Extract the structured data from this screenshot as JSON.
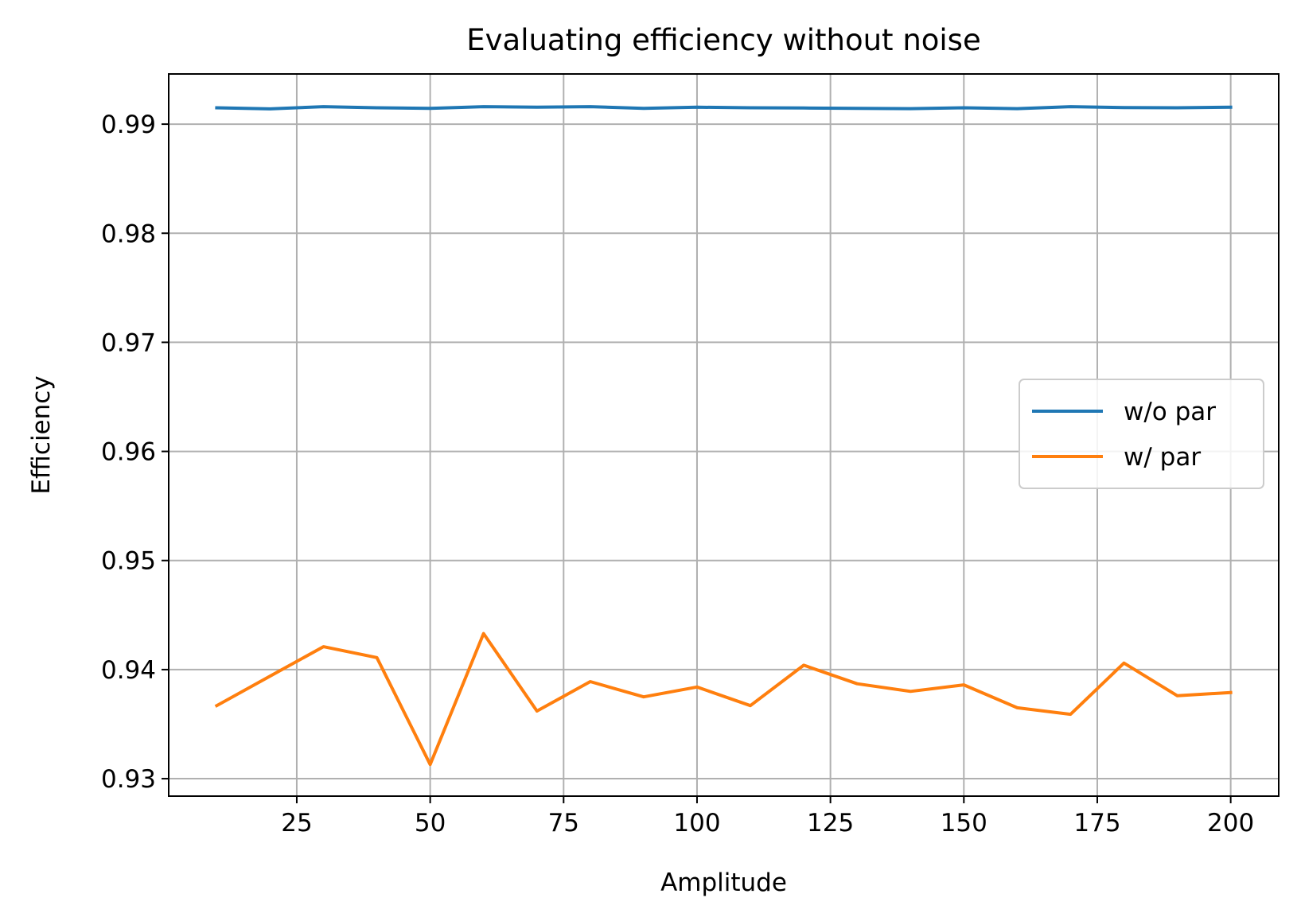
{
  "chart_data": {
    "type": "line",
    "title": "Evaluating efficiency without noise",
    "xlabel": "Amplitude",
    "ylabel": "Efficiency",
    "xlim": [
      1,
      209
    ],
    "ylim": [
      0.9284,
      0.9946
    ],
    "xticks": [
      25,
      50,
      75,
      100,
      125,
      150,
      175,
      200
    ],
    "xtick_labels": [
      "25",
      "50",
      "75",
      "100",
      "125",
      "150",
      "175",
      "200"
    ],
    "yticks": [
      0.93,
      0.94,
      0.95,
      0.96,
      0.97,
      0.98,
      0.99
    ],
    "ytick_labels": [
      "0.93",
      "0.94",
      "0.95",
      "0.96",
      "0.97",
      "0.98",
      "0.99"
    ],
    "grid": true,
    "legend_position": "center-right",
    "x": [
      10,
      20,
      30,
      40,
      50,
      60,
      70,
      80,
      90,
      100,
      110,
      120,
      130,
      140,
      150,
      160,
      170,
      180,
      190,
      200
    ],
    "series": [
      {
        "name": "w/o par",
        "color": "#1f77b4",
        "values": [
          0.9915,
          0.9914,
          0.9916,
          0.9915,
          0.99145,
          0.9916,
          0.99155,
          0.9916,
          0.99145,
          0.99155,
          0.9915,
          0.99148,
          0.99145,
          0.99142,
          0.9915,
          0.99142,
          0.9916,
          0.99152,
          0.9915,
          0.99155
        ]
      },
      {
        "name": "w/ par",
        "color": "#ff7f0e",
        "values": [
          0.9367,
          0.9394,
          0.9421,
          0.9411,
          0.9313,
          0.9433,
          0.9362,
          0.9389,
          0.9375,
          0.9384,
          0.9367,
          0.9404,
          0.9387,
          0.938,
          0.9386,
          0.9365,
          0.9359,
          0.9406,
          0.9376,
          0.9379
        ]
      }
    ]
  }
}
